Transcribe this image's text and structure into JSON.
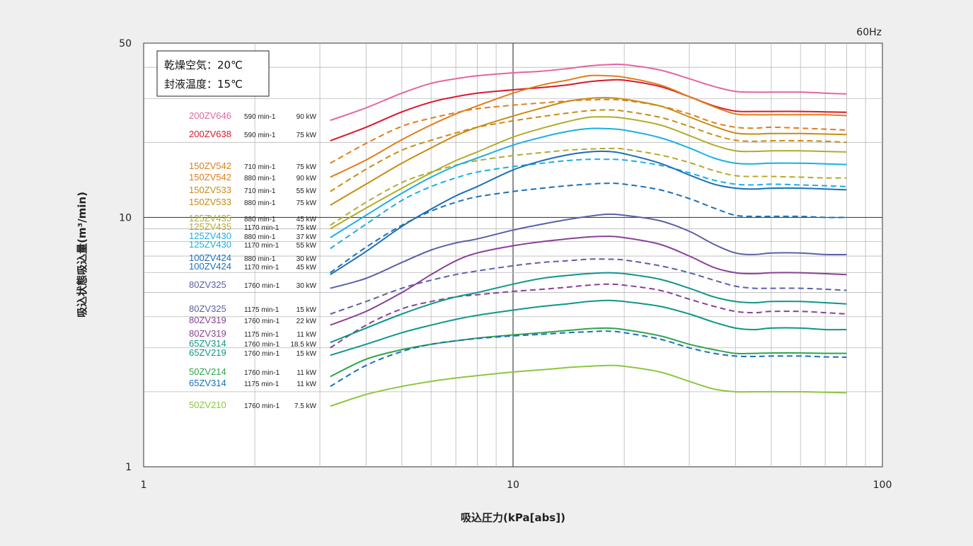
{
  "chart_data": {
    "type": "line",
    "title": "",
    "freq_label": "60Hz",
    "xlabel": "吸込圧力(kPa[abs])",
    "ylabel": "吸込状態吸込量(m³/min)",
    "xscale": "log",
    "yscale": "log",
    "xlim": [
      1,
      100
    ],
    "ylim": [
      1,
      50
    ],
    "x_ticks": [
      "1",
      "10",
      "100"
    ],
    "y_ticks": [
      "1",
      "10",
      "50"
    ],
    "grid": true,
    "legend_position": "left",
    "conditions": [
      "乾燥空気：20℃",
      "封液温度：15℃"
    ],
    "x": [
      3.2,
      4,
      5,
      6,
      7,
      8,
      10,
      12,
      14,
      16,
      18,
      20,
      25,
      30,
      35,
      40,
      45,
      50,
      60,
      70,
      80
    ],
    "series": [
      {
        "name": "200ZV646",
        "speed": "590 min-1",
        "power": "90 kW",
        "color": "#e4649e",
        "dash": false,
        "values": [
          24.5,
          27.5,
          31.5,
          34.5,
          36,
          37,
          38,
          38.6,
          39.5,
          40.5,
          41,
          41,
          39,
          36,
          33.5,
          32,
          31.8,
          31.8,
          31.8,
          31.5,
          31.3
        ]
      },
      {
        "name": "200ZV638",
        "speed": "590 min-1",
        "power": "75 kW",
        "color": "#d9172c",
        "dash": false,
        "values": [
          20.3,
          23,
          26.5,
          29,
          30.5,
          31.5,
          32.5,
          33.2,
          34,
          35,
          35.5,
          35.5,
          33.5,
          30.5,
          28,
          26.7,
          26.6,
          26.6,
          26.6,
          26.5,
          26.4
        ]
      },
      {
        "name": "150ZV542",
        "speed": "710 min-1",
        "power": "75 kW",
        "color": "#e07d1a",
        "dash": true,
        "values": [
          16.5,
          19.8,
          23.2,
          25,
          26.3,
          27.3,
          28.2,
          28.8,
          29.3,
          29.6,
          29.7,
          29.5,
          28,
          26,
          24,
          23,
          22.8,
          23,
          22.8,
          22.6,
          22.4
        ]
      },
      {
        "name": "150ZV542",
        "speed": "880 min-1",
        "power": "90 kW",
        "color": "#e07d1a",
        "dash": false,
        "values": [
          14.5,
          17,
          20.5,
          23.5,
          26,
          28,
          31.5,
          34,
          35.5,
          37,
          37,
          36.5,
          34,
          30.5,
          27.8,
          26,
          25.8,
          25.8,
          25.8,
          25.8,
          25.6
        ]
      },
      {
        "name": "150ZV533",
        "speed": "710 min-1",
        "power": "55 kW",
        "color": "#c88b12",
        "dash": true,
        "values": [
          12.7,
          15.6,
          18.6,
          20.4,
          21.8,
          23,
          24.4,
          25.4,
          26.2,
          26.8,
          27,
          26.7,
          25.2,
          23.2,
          21.4,
          20.4,
          20.2,
          20.3,
          20.3,
          20.2,
          20
        ]
      },
      {
        "name": "150ZV533",
        "speed": "880 min-1",
        "power": "75 kW",
        "color": "#c88b12",
        "dash": false,
        "values": [
          11.2,
          13.6,
          16.5,
          19,
          21.3,
          23,
          25.5,
          27.5,
          29.2,
          30,
          30.2,
          29.8,
          28,
          25.3,
          23.2,
          21.8,
          21.6,
          21.7,
          21.7,
          21.6,
          21.5
        ]
      },
      {
        "name": "125ZV435",
        "speed": "880 min-1",
        "power": "45 kW",
        "color": "#b2ab2a",
        "dash": true,
        "values": [
          9.3,
          11.5,
          13.8,
          15.2,
          16.2,
          16.9,
          17.7,
          18.2,
          18.6,
          18.8,
          18.9,
          18.8,
          17.8,
          16.6,
          15.4,
          14.7,
          14.6,
          14.6,
          14.5,
          14.4,
          14.4
        ]
      },
      {
        "name": "125ZV435",
        "speed": "1170 min-1",
        "power": "75 kW",
        "color": "#b2ab2a",
        "dash": false,
        "values": [
          9.0,
          10.9,
          13.1,
          15.1,
          16.9,
          18.3,
          21,
          22.8,
          24.2,
          25.2,
          25.3,
          25,
          23.5,
          21.3,
          19.5,
          18.5,
          18.4,
          18.5,
          18.5,
          18.4,
          18.3
        ]
      },
      {
        "name": "125ZV430",
        "speed": "880 min-1",
        "power": "37 kW",
        "color": "#1aafe2",
        "dash": true,
        "values": [
          7.5,
          9.4,
          11.7,
          13.3,
          14.4,
          15.2,
          16,
          16.5,
          16.9,
          17.1,
          17.1,
          17,
          16.2,
          15.1,
          14.1,
          13.6,
          13.5,
          13.6,
          13.5,
          13.4,
          13.3
        ]
      },
      {
        "name": "125ZV430",
        "speed": "1170 min-1",
        "power": "55 kW",
        "color": "#1aafe2",
        "dash": false,
        "values": [
          8.3,
          10.2,
          12.5,
          14.5,
          16.1,
          17.3,
          19.5,
          21,
          22.1,
          22.7,
          22.7,
          22.4,
          20.9,
          19,
          17.3,
          16.5,
          16.4,
          16.5,
          16.5,
          16.4,
          16.3
        ]
      },
      {
        "name": "100ZV424",
        "speed": "880 min-1",
        "power": "30 kW",
        "color": "#1b6fb8",
        "dash": true,
        "values": [
          6.0,
          7.6,
          9.3,
          10.6,
          11.5,
          12.1,
          12.7,
          13.1,
          13.4,
          13.6,
          13.7,
          13.6,
          12.9,
          11.9,
          10.9,
          10.2,
          10.1,
          10.1,
          10.1,
          10,
          10
        ]
      },
      {
        "name": "100ZV424",
        "speed": "1170 min-1",
        "power": "45 kW",
        "color": "#1b6fb8",
        "dash": false,
        "values": [
          5.9,
          7.3,
          9.2,
          10.8,
          12.2,
          13.3,
          15.5,
          16.9,
          17.8,
          18.3,
          18.4,
          18,
          16.5,
          14.8,
          13.6,
          13.1,
          13,
          13.1,
          13.1,
          13,
          12.9
        ]
      },
      {
        "name": "80ZV325",
        "speed": "1760 min-1",
        "power": "30 kW",
        "color": "#5b60a8",
        "dash": false,
        "values": [
          5.2,
          5.7,
          6.6,
          7.4,
          7.9,
          8.2,
          8.9,
          9.4,
          9.8,
          10.1,
          10.3,
          10.2,
          9.7,
          8.8,
          7.8,
          7.2,
          7.1,
          7.2,
          7.2,
          7.1,
          7.1
        ]
      },
      {
        "name": "80ZV325",
        "speed": "1175 min-1",
        "power": "15 kW",
        "color": "#5b60a8",
        "dash": true,
        "values": [
          4.1,
          4.6,
          5.2,
          5.6,
          5.9,
          6.1,
          6.4,
          6.6,
          6.7,
          6.8,
          6.8,
          6.75,
          6.4,
          6.0,
          5.6,
          5.3,
          5.2,
          5.2,
          5.2,
          5.15,
          5.1
        ]
      },
      {
        "name": "80ZV319",
        "speed": "1760 min-1",
        "power": "22 kW",
        "color": "#8b3f97",
        "dash": false,
        "values": [
          3.7,
          4.2,
          5.0,
          5.9,
          6.7,
          7.2,
          7.7,
          8.0,
          8.2,
          8.35,
          8.4,
          8.3,
          7.8,
          7.0,
          6.3,
          6.0,
          5.95,
          6.0,
          6.0,
          5.95,
          5.9
        ]
      },
      {
        "name": "80ZV319",
        "speed": "1175 min-1",
        "power": "11 kW",
        "color": "#8b3f97",
        "dash": true,
        "values": [
          3.0,
          3.7,
          4.3,
          4.6,
          4.8,
          4.9,
          5.05,
          5.15,
          5.25,
          5.35,
          5.4,
          5.35,
          5.1,
          4.7,
          4.4,
          4.2,
          4.15,
          4.2,
          4.2,
          4.15,
          4.1
        ]
      },
      {
        "name": "65ZV314",
        "speed": "1760 min-1",
        "power": "18.5 kW",
        "color": "#0f9688",
        "dash": false,
        "values": [
          3.15,
          3.6,
          4.1,
          4.5,
          4.8,
          5.0,
          5.4,
          5.7,
          5.85,
          5.95,
          6.0,
          5.95,
          5.65,
          5.2,
          4.8,
          4.6,
          4.55,
          4.6,
          4.6,
          4.55,
          4.5
        ]
      },
      {
        "name": "65ZV219",
        "speed": "1760 min-1",
        "power": "15 kW",
        "color": "#0f9688",
        "dash": false,
        "values": [
          2.8,
          3.1,
          3.45,
          3.7,
          3.9,
          4.05,
          4.25,
          4.4,
          4.5,
          4.6,
          4.65,
          4.6,
          4.4,
          4.1,
          3.8,
          3.6,
          3.55,
          3.6,
          3.6,
          3.55,
          3.55
        ]
      },
      {
        "name": "50ZV214",
        "speed": "1760 min-1",
        "power": "11 kW",
        "color": "#2ea44a",
        "dash": false,
        "values": [
          2.3,
          2.7,
          2.95,
          3.1,
          3.2,
          3.28,
          3.38,
          3.45,
          3.52,
          3.58,
          3.6,
          3.55,
          3.35,
          3.1,
          2.95,
          2.85,
          2.85,
          2.86,
          2.86,
          2.85,
          2.85
        ]
      },
      {
        "name": "65ZV314",
        "speed": "1175 min-1",
        "power": "11 kW",
        "color": "#1b6fb8",
        "dash": true,
        "values": [
          2.1,
          2.55,
          2.9,
          3.1,
          3.2,
          3.27,
          3.35,
          3.4,
          3.45,
          3.48,
          3.5,
          3.45,
          3.25,
          3.0,
          2.85,
          2.78,
          2.77,
          2.78,
          2.78,
          2.76,
          2.75
        ]
      },
      {
        "name": "50ZV210",
        "speed": "1760 min-1",
        "power": "7.5 kW",
        "color": "#8cc63e",
        "dash": false,
        "values": [
          1.75,
          1.95,
          2.1,
          2.2,
          2.27,
          2.32,
          2.4,
          2.45,
          2.5,
          2.53,
          2.55,
          2.53,
          2.4,
          2.2,
          2.05,
          2.0,
          2.0,
          2.0,
          2.0,
          1.99,
          1.98
        ]
      }
    ]
  }
}
